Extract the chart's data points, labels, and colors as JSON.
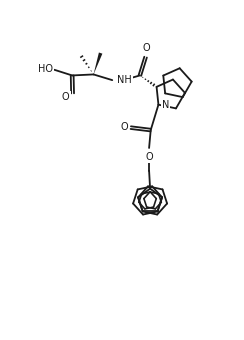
{
  "bg_color": "#ffffff",
  "line_color": "#1a1a1a",
  "lw": 1.3,
  "fs": 7.0,
  "figsize": [
    2.44,
    3.4
  ],
  "dpi": 100,
  "xlim": [
    -1,
    11
  ],
  "ylim": [
    0,
    15
  ]
}
